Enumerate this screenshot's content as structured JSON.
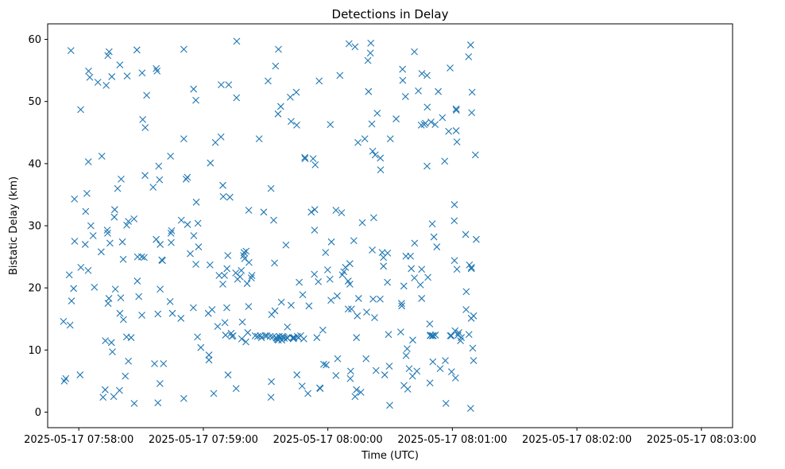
{
  "chart_data": {
    "type": "scatter",
    "title": "Detections in Delay",
    "xlabel": "Time (UTC)",
    "ylabel": "Bistatic Delay (km)",
    "marker": "x",
    "color": "#1f77b4",
    "xlim_seconds": [
      -15,
      315
    ],
    "ylim": [
      -2.5,
      62.5
    ],
    "x_ticks": [
      {
        "seconds": 0,
        "label": "2025-05-17 07:58:00"
      },
      {
        "seconds": 60,
        "label": "2025-05-17 07:59:00"
      },
      {
        "seconds": 120,
        "label": "2025-05-17 08:00:00"
      },
      {
        "seconds": 180,
        "label": "2025-05-17 08:01:00"
      },
      {
        "seconds": 240,
        "label": "2025-05-17 08:02:00"
      },
      {
        "seconds": 300,
        "label": "2025-05-17 08:03:00"
      }
    ],
    "y_ticks": [
      0,
      10,
      20,
      30,
      40,
      50,
      60
    ],
    "x_unit": "seconds after 2025-05-17 07:58:00 UTC",
    "points": [
      [
        -7.4,
        14.6
      ],
      [
        -7.0,
        5.0
      ],
      [
        -6.3,
        5.4
      ],
      [
        -4.6,
        22.1
      ],
      [
        -4.2,
        14.0
      ],
      [
        -3.8,
        58.2
      ],
      [
        -3.5,
        17.9
      ],
      [
        -2.5,
        19.9
      ],
      [
        -2.1,
        34.3
      ],
      [
        -2.0,
        27.5
      ],
      [
        0.6,
        6.0
      ],
      [
        0.9,
        48.7
      ],
      [
        1.0,
        23.3
      ],
      [
        3.1,
        27.0
      ],
      [
        3.3,
        32.3
      ],
      [
        3.9,
        35.2
      ],
      [
        4.5,
        22.8
      ],
      [
        4.6,
        40.3
      ],
      [
        4.7,
        54.9
      ],
      [
        5.3,
        53.9
      ],
      [
        5.8,
        30.0
      ],
      [
        6.9,
        28.4
      ],
      [
        7.5,
        20.1
      ],
      [
        9.2,
        53.1
      ],
      [
        10.8,
        25.8
      ],
      [
        11.1,
        41.2
      ],
      [
        11.7,
        2.4
      ],
      [
        12.7,
        3.6
      ],
      [
        12.8,
        11.5
      ],
      [
        13.2,
        52.6
      ],
      [
        13.7,
        29.3
      ],
      [
        13.9,
        28.8
      ],
      [
        14.0,
        57.4
      ],
      [
        14.5,
        18.3
      ],
      [
        14.1,
        17.5
      ],
      [
        14.6,
        58.0
      ],
      [
        15.0,
        27.2
      ],
      [
        15.7,
        11.2
      ],
      [
        15.9,
        54.0
      ],
      [
        16.2,
        9.7
      ],
      [
        16.8,
        2.5
      ],
      [
        17.1,
        31.4
      ],
      [
        17.3,
        32.6
      ],
      [
        17.6,
        19.8
      ],
      [
        18.7,
        36.0
      ],
      [
        19.6,
        3.5
      ],
      [
        19.8,
        15.9
      ],
      [
        19.8,
        55.9
      ],
      [
        20.2,
        18.4
      ],
      [
        20.4,
        37.5
      ],
      [
        21.0,
        27.4
      ],
      [
        21.4,
        24.6
      ],
      [
        21.5,
        14.9
      ],
      [
        22.4,
        5.8
      ],
      [
        23.0,
        12.1
      ],
      [
        23.1,
        30.1
      ],
      [
        23.3,
        54.1
      ],
      [
        23.9,
        30.7
      ],
      [
        23.9,
        8.2
      ],
      [
        25.2,
        12.0
      ],
      [
        26.6,
        31.1
      ],
      [
        26.7,
        1.4
      ],
      [
        28.0,
        58.3
      ],
      [
        28.3,
        25.0
      ],
      [
        28.2,
        21.1
      ],
      [
        28.9,
        18.6
      ],
      [
        30.3,
        25.0
      ],
      [
        30.4,
        15.6
      ],
      [
        30.5,
        54.6
      ],
      [
        30.8,
        47.1
      ],
      [
        31.5,
        24.9
      ],
      [
        31.9,
        38.1
      ],
      [
        32.0,
        45.8
      ],
      [
        32.7,
        51.0
      ],
      [
        35.8,
        36.2
      ],
      [
        36.5,
        7.8
      ],
      [
        37.3,
        55.3
      ],
      [
        37.3,
        27.8
      ],
      [
        37.7,
        54.9
      ],
      [
        38.1,
        1.5
      ],
      [
        38.1,
        15.8
      ],
      [
        38.5,
        39.6
      ],
      [
        38.9,
        37.4
      ],
      [
        39.1,
        4.6
      ],
      [
        39.2,
        19.8
      ],
      [
        39.2,
        27.0
      ],
      [
        40.0,
        24.5
      ],
      [
        40.3,
        24.4
      ],
      [
        40.8,
        7.8
      ],
      [
        44.0,
        17.8
      ],
      [
        44.2,
        41.2
      ],
      [
        44.4,
        28.8
      ],
      [
        44.5,
        27.3
      ],
      [
        44.7,
        29.2
      ],
      [
        45.1,
        15.9
      ],
      [
        49.2,
        15.1
      ],
      [
        49.4,
        30.9
      ],
      [
        50.6,
        58.4
      ],
      [
        50.6,
        2.2
      ],
      [
        50.6,
        44.0
      ],
      [
        51.7,
        37.5
      ],
      [
        52.3,
        37.8
      ],
      [
        52.4,
        30.2
      ],
      [
        53.7,
        25.5
      ],
      [
        55.2,
        16.8
      ],
      [
        55.3,
        52.0
      ],
      [
        55.4,
        28.4
      ],
      [
        56.4,
        50.2
      ],
      [
        56.4,
        23.8
      ],
      [
        56.6,
        33.8
      ],
      [
        57.2,
        12.1
      ],
      [
        57.4,
        30.4
      ],
      [
        57.7,
        26.6
      ],
      [
        58.8,
        10.4
      ],
      [
        62.4,
        15.9
      ],
      [
        62.7,
        9.2
      ],
      [
        62.7,
        8.4
      ],
      [
        63.2,
        23.7
      ],
      [
        63.4,
        40.1
      ],
      [
        64.2,
        16.5
      ],
      [
        65.0,
        3.0
      ],
      [
        65.8,
        43.4
      ],
      [
        66.9,
        13.8
      ],
      [
        67.6,
        22.0
      ],
      [
        68.5,
        44.3
      ],
      [
        68.6,
        52.7
      ],
      [
        69.4,
        36.5
      ],
      [
        69.4,
        20.6
      ],
      [
        69.6,
        34.7
      ],
      [
        70.2,
        22.0
      ],
      [
        70.4,
        14.4
      ],
      [
        70.7,
        12.4
      ],
      [
        71.3,
        16.8
      ],
      [
        71.4,
        23.1
      ],
      [
        71.8,
        25.2
      ],
      [
        71.9,
        6.0
      ],
      [
        72.2,
        52.7
      ],
      [
        72.8,
        34.6
      ],
      [
        73.4,
        12.7
      ],
      [
        73.8,
        12.2
      ],
      [
        74.3,
        12.3
      ],
      [
        75.6,
        22.4
      ],
      [
        75.8,
        3.8
      ],
      [
        76.1,
        59.7
      ],
      [
        76.0,
        50.6
      ],
      [
        76.5,
        21.4
      ],
      [
        77.7,
        21.8
      ],
      [
        78.3,
        22.8
      ],
      [
        78.5,
        11.8
      ],
      [
        78.8,
        14.5
      ],
      [
        79.4,
        25.2
      ],
      [
        79.6,
        25.7
      ],
      [
        79.9,
        24.7
      ],
      [
        80.5,
        11.3
      ],
      [
        80.6,
        25.9
      ],
      [
        81.1,
        20.7
      ],
      [
        81.4,
        12.8
      ],
      [
        81.8,
        17.0
      ],
      [
        81.9,
        32.5
      ],
      [
        82.0,
        24.1
      ],
      [
        83.1,
        21.6
      ],
      [
        83.4,
        22.0
      ],
      [
        85.0,
        12.3
      ],
      [
        86.2,
        12.2
      ],
      [
        86.9,
        44.0
      ],
      [
        87.5,
        12.3
      ],
      [
        88.0,
        12.0
      ],
      [
        89.1,
        32.2
      ],
      [
        89.8,
        12.3
      ],
      [
        90.6,
        12.3
      ],
      [
        91.2,
        53.3
      ],
      [
        92.2,
        12.2
      ],
      [
        92.6,
        36.0
      ],
      [
        92.6,
        2.4
      ],
      [
        92.8,
        4.9
      ],
      [
        92.9,
        15.7
      ],
      [
        93.5,
        12.1
      ],
      [
        93.9,
        30.9
      ],
      [
        94.3,
        24.0
      ],
      [
        94.5,
        16.3
      ],
      [
        94.8,
        55.7
      ],
      [
        95.1,
        12.0
      ],
      [
        95.4,
        11.9
      ],
      [
        95.7,
        11.7
      ],
      [
        96.0,
        48.0
      ],
      [
        96.1,
        11.6
      ],
      [
        96.2,
        58.4
      ],
      [
        96.6,
        12.2
      ],
      [
        96.9,
        11.9
      ],
      [
        97.3,
        49.2
      ],
      [
        97.6,
        17.7
      ],
      [
        97.8,
        11.6
      ],
      [
        98.1,
        12.2
      ],
      [
        98.6,
        12.1
      ],
      [
        99.0,
        11.9
      ],
      [
        99.8,
        26.9
      ],
      [
        100.3,
        12.0
      ],
      [
        100.5,
        11.9
      ],
      [
        100.5,
        13.7
      ],
      [
        101.9,
        50.7
      ],
      [
        102.3,
        46.8
      ],
      [
        102.3,
        17.2
      ],
      [
        103.2,
        12.0
      ],
      [
        103.4,
        11.8
      ],
      [
        103.7,
        12.0
      ],
      [
        104.8,
        51.5
      ],
      [
        105.0,
        46.2
      ],
      [
        105.1,
        6.0
      ],
      [
        105.3,
        12.2
      ],
      [
        105.8,
        12.0
      ],
      [
        106.2,
        20.9
      ],
      [
        106.9,
        12.3
      ],
      [
        107.6,
        4.2
      ],
      [
        107.9,
        18.9
      ],
      [
        108.4,
        11.8
      ],
      [
        108.9,
        41.0
      ],
      [
        109.0,
        40.8
      ],
      [
        110.4,
        3.0
      ],
      [
        110.9,
        17.1
      ],
      [
        112.0,
        32.2
      ],
      [
        112.9,
        40.8
      ],
      [
        113.5,
        22.2
      ],
      [
        113.6,
        29.3
      ],
      [
        113.7,
        32.6
      ],
      [
        113.9,
        39.8
      ],
      [
        114.7,
        12.0
      ],
      [
        115.4,
        21.0
      ],
      [
        115.8,
        53.3
      ],
      [
        116.1,
        3.9
      ],
      [
        116.3,
        3.8
      ],
      [
        117.6,
        13.2
      ],
      [
        118.0,
        7.7
      ],
      [
        118.9,
        25.7
      ],
      [
        119.2,
        7.6
      ],
      [
        119.9,
        22.9
      ],
      [
        121.0,
        21.4
      ],
      [
        121.2,
        46.3
      ],
      [
        121.5,
        18.0
      ],
      [
        121.7,
        27.4
      ],
      [
        123.9,
        5.9
      ],
      [
        123.9,
        32.5
      ],
      [
        124.5,
        18.7
      ],
      [
        124.7,
        8.6
      ],
      [
        125.8,
        54.2
      ],
      [
        126.6,
        32.1
      ],
      [
        127.0,
        22.1
      ],
      [
        127.7,
        22.6
      ],
      [
        128.5,
        23.3
      ],
      [
        129.8,
        21.1
      ],
      [
        129.8,
        16.6
      ],
      [
        130.2,
        59.3
      ],
      [
        130.6,
        23.9
      ],
      [
        130.6,
        20.6
      ],
      [
        130.8,
        5.4
      ],
      [
        131.0,
        6.6
      ],
      [
        131.4,
        16.6
      ],
      [
        132.5,
        27.6
      ],
      [
        133.1,
        2.5
      ],
      [
        133.1,
        58.8
      ],
      [
        133.8,
        12.0
      ],
      [
        133.8,
        3.6
      ],
      [
        134.2,
        15.5
      ],
      [
        134.5,
        43.4
      ],
      [
        134.8,
        18.3
      ],
      [
        135.9,
        3.2
      ],
      [
        136.6,
        30.5
      ],
      [
        137.8,
        44.0
      ],
      [
        138.4,
        8.6
      ],
      [
        138.7,
        16.1
      ],
      [
        139.3,
        56.6
      ],
      [
        139.6,
        51.6
      ],
      [
        140.5,
        57.8
      ],
      [
        140.7,
        59.4
      ],
      [
        141.2,
        46.4
      ],
      [
        141.4,
        26.1
      ],
      [
        141.6,
        42.0
      ],
      [
        141.8,
        18.2
      ],
      [
        142.1,
        31.3
      ],
      [
        142.5,
        15.2
      ],
      [
        142.8,
        41.4
      ],
      [
        143.2,
        6.7
      ],
      [
        143.8,
        48.1
      ],
      [
        145.2,
        18.2
      ],
      [
        145.3,
        40.9
      ],
      [
        145.4,
        39.0
      ],
      [
        146.2,
        25.7
      ],
      [
        146.8,
        24.9
      ],
      [
        146.8,
        23.5
      ],
      [
        147.4,
        6.0
      ],
      [
        148.7,
        20.9
      ],
      [
        148.8,
        25.6
      ],
      [
        149.2,
        12.5
      ],
      [
        149.6,
        7.4
      ],
      [
        149.8,
        1.1
      ],
      [
        150.1,
        44.0
      ],
      [
        152.9,
        47.2
      ],
      [
        155.1,
        12.9
      ],
      [
        155.5,
        17.5
      ],
      [
        155.6,
        17.1
      ],
      [
        156.0,
        55.2
      ],
      [
        156.1,
        53.4
      ],
      [
        156.6,
        20.3
      ],
      [
        156.7,
        4.3
      ],
      [
        157.4,
        50.8
      ],
      [
        157.6,
        25.1
      ],
      [
        157.7,
        9.1
      ],
      [
        158.2,
        10.2
      ],
      [
        158.5,
        3.7
      ],
      [
        159.2,
        7.0
      ],
      [
        159.8,
        25.1
      ],
      [
        160.2,
        23.1
      ],
      [
        160.8,
        5.8
      ],
      [
        160.9,
        11.6
      ],
      [
        161.7,
        58.0
      ],
      [
        161.7,
        21.6
      ],
      [
        161.8,
        27.2
      ],
      [
        162.9,
        6.6
      ],
      [
        163.6,
        51.7
      ],
      [
        164.6,
        20.5
      ],
      [
        165.0,
        46.2
      ],
      [
        165.2,
        23.0
      ],
      [
        165.2,
        18.3
      ],
      [
        165.3,
        54.5
      ],
      [
        166.4,
        46.3
      ],
      [
        167.0,
        46.5
      ],
      [
        167.8,
        54.2
      ],
      [
        167.8,
        39.6
      ],
      [
        167.9,
        49.1
      ],
      [
        168.2,
        21.7
      ],
      [
        169.1,
        14.2
      ],
      [
        169.2,
        4.7
      ],
      [
        169.3,
        12.3
      ],
      [
        169.5,
        12.4
      ],
      [
        169.7,
        46.7
      ],
      [
        170.3,
        30.3
      ],
      [
        170.3,
        12.3
      ],
      [
        170.6,
        8.1
      ],
      [
        170.8,
        12.3
      ],
      [
        171.1,
        28.2
      ],
      [
        171.7,
        46.3
      ],
      [
        171.8,
        12.4
      ],
      [
        172.5,
        26.6
      ],
      [
        173.2,
        51.6
      ],
      [
        174.1,
        7.0
      ],
      [
        175.2,
        47.4
      ],
      [
        176.3,
        40.4
      ],
      [
        176.6,
        8.3
      ],
      [
        176.9,
        1.4
      ],
      [
        178.2,
        45.2
      ],
      [
        178.9,
        55.4
      ],
      [
        179.0,
        12.3
      ],
      [
        179.5,
        12.3
      ],
      [
        179.6,
        6.5
      ],
      [
        180.9,
        30.8
      ],
      [
        181.0,
        33.4
      ],
      [
        181.0,
        24.4
      ],
      [
        181.3,
        13.1
      ],
      [
        181.5,
        5.5
      ],
      [
        181.8,
        48.8
      ],
      [
        181.8,
        45.3
      ],
      [
        181.9,
        48.6
      ],
      [
        182.2,
        43.5
      ],
      [
        182.2,
        23.0
      ],
      [
        182.7,
        12.4
      ],
      [
        183.1,
        12.8
      ],
      [
        183.9,
        11.5
      ],
      [
        184.3,
        12.0
      ],
      [
        186.4,
        28.6
      ],
      [
        186.6,
        16.5
      ],
      [
        186.7,
        19.4
      ],
      [
        187.8,
        57.2
      ],
      [
        188.0,
        12.5
      ],
      [
        188.2,
        23.7
      ],
      [
        188.8,
        59.1
      ],
      [
        188.8,
        0.6
      ],
      [
        189.1,
        15.1
      ],
      [
        189.1,
        23.1
      ],
      [
        189.2,
        23.3
      ],
      [
        189.3,
        48.2
      ],
      [
        189.5,
        51.5
      ],
      [
        189.8,
        10.3
      ],
      [
        190.2,
        8.3
      ],
      [
        190.2,
        15.5
      ],
      [
        191.1,
        41.4
      ],
      [
        191.5,
        27.8
      ]
    ]
  }
}
